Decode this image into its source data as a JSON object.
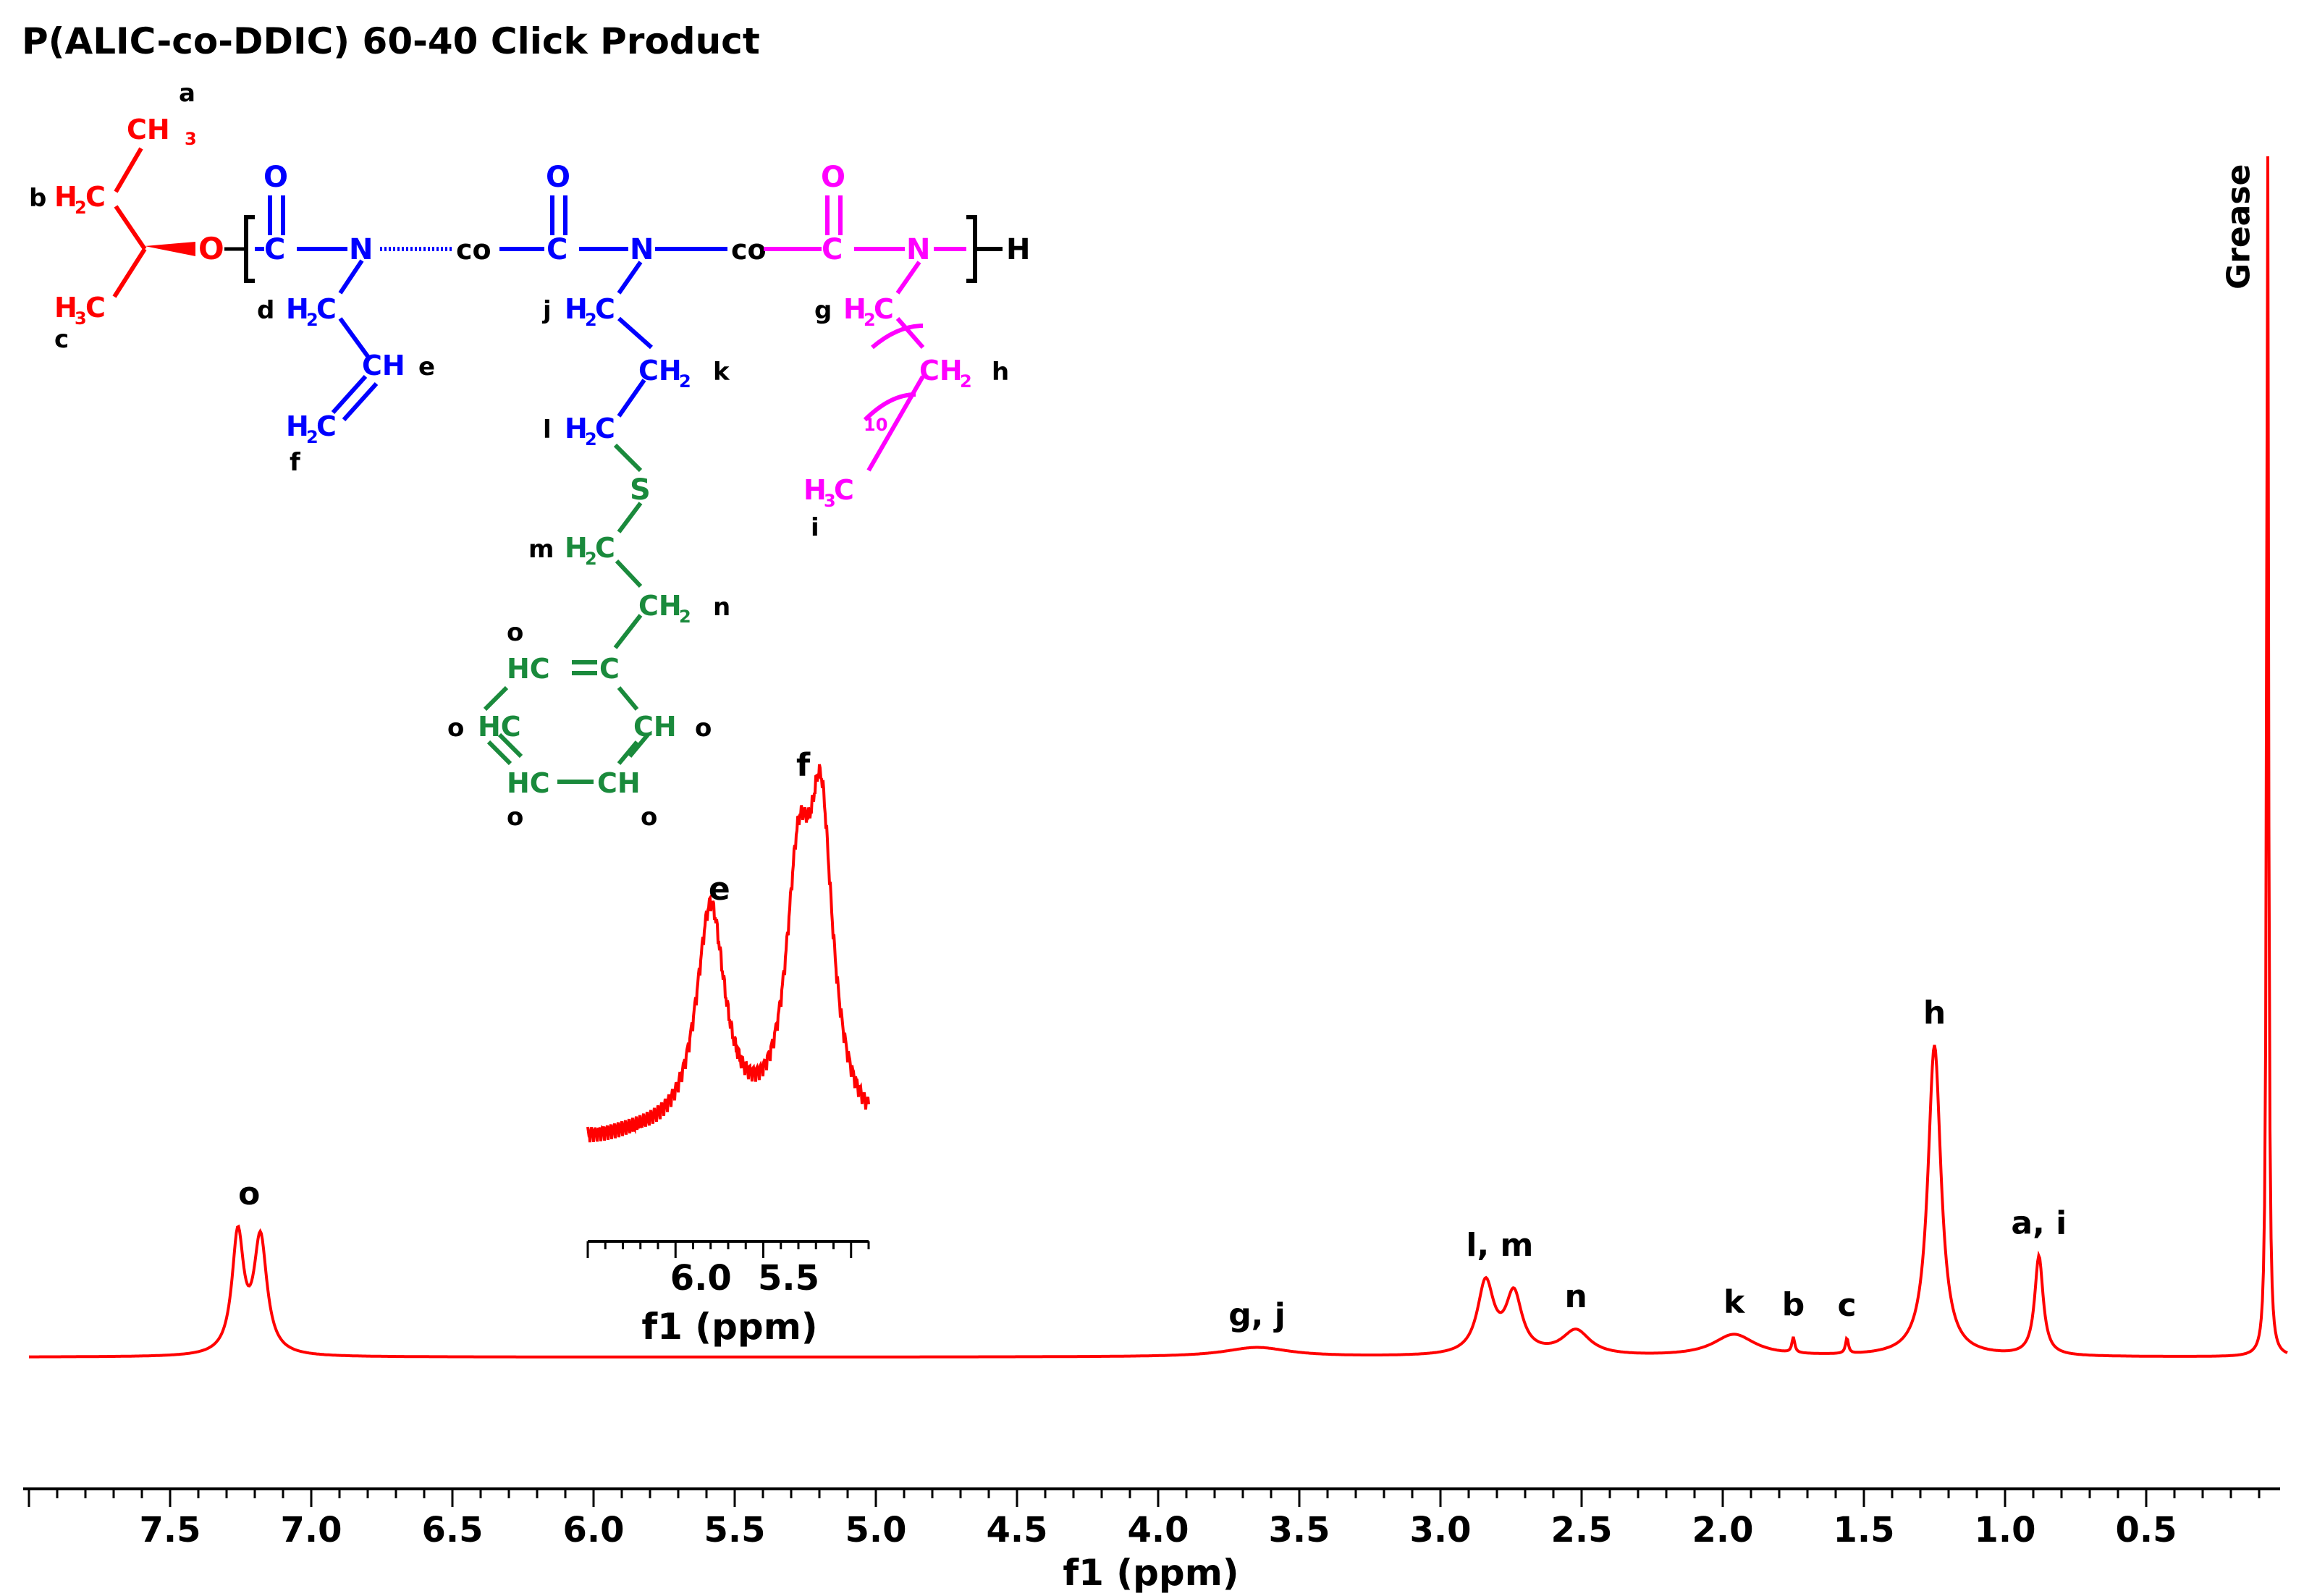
{
  "title": "P(ALIC-co-DDIC) 60-40 Click Product",
  "chart_data": {
    "type": "line",
    "title": "P(ALIC-co-DDIC) 60-40 Click Product",
    "xlabel": "f1 (ppm)",
    "ylabel": "",
    "x_reversed": true,
    "xlim": [
      8.0,
      0.0
    ],
    "xticks": [
      "7.5",
      "7.0",
      "6.5",
      "6.0",
      "5.5",
      "5.0",
      "4.5",
      "4.0",
      "3.5",
      "3.0",
      "2.5",
      "2.0",
      "1.5",
      "1.0",
      "0.5"
    ],
    "grid": false,
    "color": "#ff0000",
    "peaks": [
      {
        "label": "o",
        "ppm": 7.26,
        "height": 0.38
      },
      {
        "label": "o",
        "ppm": 7.18,
        "height": 0.37
      },
      {
        "label": "g, j",
        "ppm": 3.65,
        "height": 0.03
      },
      {
        "label": "l, m",
        "ppm": 2.84,
        "height": 0.23
      },
      {
        "label": "l, m",
        "ppm": 2.74,
        "height": 0.19
      },
      {
        "label": "n",
        "ppm": 2.52,
        "height": 0.08
      },
      {
        "label": "k",
        "ppm": 1.96,
        "height": 0.07
      },
      {
        "label": "b",
        "ppm": 1.75,
        "height": 0.05
      },
      {
        "label": "c",
        "ppm": 1.56,
        "height": 0.05
      },
      {
        "label": "h",
        "ppm": 1.25,
        "height": 1.0
      },
      {
        "label": "a, i",
        "ppm": 0.88,
        "height": 0.32
      },
      {
        "label": "Grease",
        "ppm": 0.07,
        "height": 4.0
      }
    ],
    "annotations": [
      "o",
      "g, j",
      "l, m",
      "n",
      "k",
      "b",
      "c",
      "h",
      "a, i",
      "Grease"
    ],
    "inset": {
      "type": "line",
      "xlabel": "f1 (ppm)",
      "xlim": [
        6.5,
        4.9
      ],
      "xticks": [
        "6.0",
        "5.5"
      ],
      "peaks": [
        {
          "label": "e",
          "ppm": 5.8,
          "height": 0.78
        },
        {
          "label": "",
          "ppm": 5.3,
          "height": 0.8
        },
        {
          "label": "f",
          "ppm": 5.17,
          "height": 1.0
        }
      ],
      "annotations": [
        "e",
        "f"
      ]
    }
  },
  "structure": {
    "letters": {
      "a": "a",
      "b": "b",
      "c": "c",
      "d": "d",
      "e": "e",
      "f": "f",
      "g": "g",
      "h": "h",
      "i": "i",
      "j": "j",
      "k": "k",
      "l": "l",
      "m": "m",
      "n": "n",
      "o": "o"
    },
    "groups": {
      "ch3": "CH",
      "h2c": "H",
      "c": "C",
      "h3c": "H",
      "o": "O",
      "n": "N",
      "co": "co",
      "h": "H",
      "ch": "CH",
      "ch2": "CH",
      "s": "S",
      "hc": "HC",
      "sub2": "2",
      "sub3": "3",
      "ten": "10"
    },
    "colors": {
      "isopropyl": "#ff0000",
      "alic": "#0000ff",
      "ddic": "#ff00ff",
      "thioether": "#1a8a3c",
      "backbone": "#000000"
    }
  }
}
